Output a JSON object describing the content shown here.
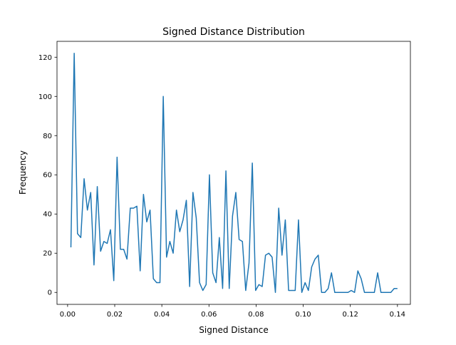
{
  "chart_data": {
    "type": "line",
    "title": "Signed Distance Distribution",
    "xlabel": "Signed Distance",
    "ylabel": "Frequency",
    "xlim": [
      -0.0045,
      0.1455
    ],
    "ylim": [
      -6.1,
      128.1
    ],
    "xticks": [
      0.0,
      0.02,
      0.04,
      0.06,
      0.08,
      0.1,
      0.12,
      0.14
    ],
    "xtick_labels": [
      "0.00",
      "0.02",
      "0.04",
      "0.06",
      "0.08",
      "0.10",
      "0.12",
      "0.14"
    ],
    "yticks": [
      0,
      20,
      40,
      60,
      80,
      100,
      120
    ],
    "ytick_labels": [
      "0",
      "20",
      "40",
      "60",
      "80",
      "100",
      "120"
    ],
    "grid": false,
    "color": "#1f77b4",
    "series": [
      {
        "x": [
          0.0014,
          0.0028,
          0.0042,
          0.0056,
          0.007,
          0.0084,
          0.0098,
          0.0112,
          0.0126,
          0.014,
          0.0154,
          0.0168,
          0.0182,
          0.0196,
          0.021,
          0.0224,
          0.0238,
          0.0252,
          0.0266,
          0.028,
          0.0294,
          0.0308,
          0.0322,
          0.0336,
          0.035,
          0.0364,
          0.0378,
          0.0392,
          0.0406,
          0.042,
          0.0434,
          0.0448,
          0.0462,
          0.0476,
          0.049,
          0.0504,
          0.0518,
          0.0532,
          0.0546,
          0.056,
          0.0574,
          0.0588,
          0.0602,
          0.0616,
          0.063,
          0.0644,
          0.0658,
          0.0672,
          0.0686,
          0.07,
          0.0714,
          0.0728,
          0.0742,
          0.0756,
          0.077,
          0.0784,
          0.0798,
          0.0812,
          0.0826,
          0.084,
          0.0854,
          0.0868,
          0.0882,
          0.0896,
          0.091,
          0.0924,
          0.0938,
          0.0952,
          0.0966,
          0.098,
          0.0994,
          0.1008,
          0.1022,
          0.1036,
          0.105,
          0.1064,
          0.1078,
          0.1092,
          0.1106,
          0.112,
          0.1134,
          0.1148,
          0.1162,
          0.1176,
          0.119,
          0.1204,
          0.1218,
          0.1232,
          0.1246,
          0.126,
          0.1274,
          0.1288,
          0.1302,
          0.1316,
          0.133,
          0.1344,
          0.1358,
          0.1372,
          0.1386,
          0.14
        ],
        "values": [
          23,
          122,
          30,
          28,
          58,
          42,
          51,
          14,
          54,
          21,
          26,
          25,
          32,
          6,
          69,
          22,
          22,
          17,
          43,
          43,
          44,
          11,
          50,
          36,
          42,
          7,
          5,
          5,
          100,
          18,
          26,
          20,
          42,
          31,
          37,
          47,
          3,
          51,
          38,
          5,
          1,
          4,
          60,
          10,
          5,
          28,
          2,
          62,
          2,
          39,
          51,
          27,
          26,
          1,
          15,
          66,
          1,
          4,
          3,
          19,
          20,
          18,
          0,
          43,
          19,
          37,
          1,
          1,
          1,
          37,
          0,
          5,
          1,
          13,
          17,
          19,
          0,
          0,
          2,
          10,
          0,
          0,
          0,
          0,
          0,
          1,
          0,
          11,
          7,
          0,
          0,
          0,
          0,
          10,
          0,
          0,
          0,
          0,
          2,
          2
        ]
      }
    ]
  }
}
